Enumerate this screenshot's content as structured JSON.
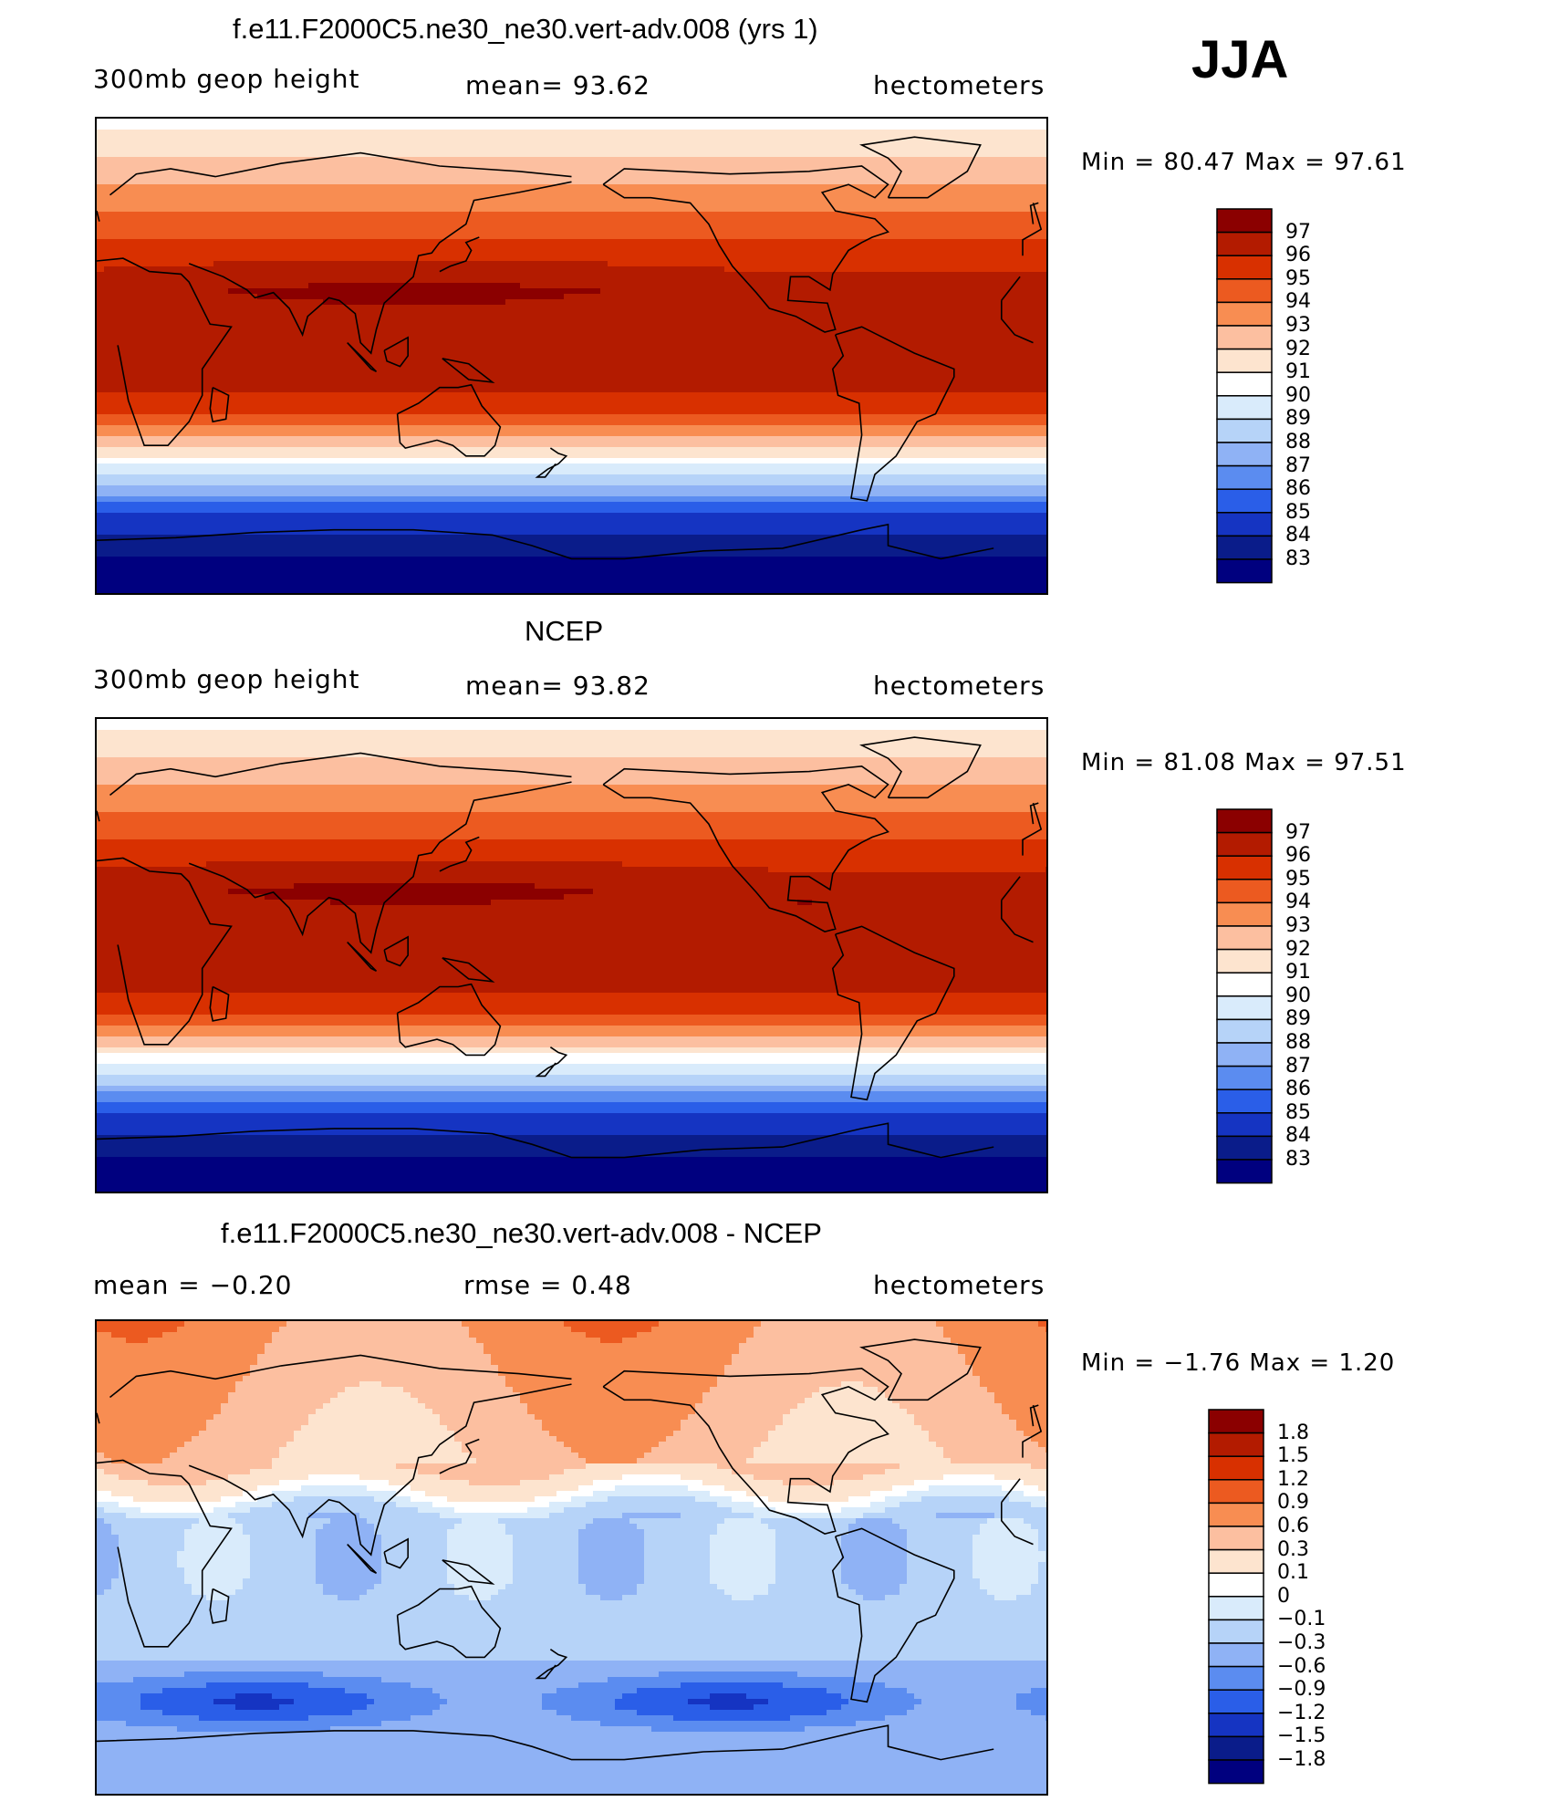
{
  "season": "JJA",
  "panels": [
    {
      "id": "model",
      "title": "f.e11.F2000C5.ne30_ne30.vert-adv.008 (yrs 1)",
      "left_label": "300mb geop height",
      "center_label": "mean=   93.62",
      "right_label": "hectometers",
      "minmax": "Min =   80.47 Max =   97.61",
      "colorbar": {
        "labels": [
          "97",
          "96",
          "95",
          "94",
          "93",
          "92",
          "91",
          "90",
          "89",
          "88",
          "87",
          "86",
          "85",
          "84",
          "83"
        ],
        "colors": [
          "#8b0000",
          "#b31b00",
          "#d83000",
          "#ec5a20",
          "#f88d52",
          "#fcbfa0",
          "#fde4cf",
          "#ffffff",
          "#d9ebfb",
          "#b6d3f8",
          "#8fb2f5",
          "#5b8cf0",
          "#2a5ee8",
          "#1534c2",
          "#0a1c8a",
          "#00007f"
        ]
      },
      "field": "geopotential"
    },
    {
      "id": "obs",
      "title": "NCEP",
      "left_label": "300mb geop height",
      "center_label": "mean=   93.82",
      "right_label": "hectometers",
      "minmax": "Min =   81.08 Max =   97.51",
      "colorbar": {
        "labels": [
          "97",
          "96",
          "95",
          "94",
          "93",
          "92",
          "91",
          "90",
          "89",
          "88",
          "87",
          "86",
          "85",
          "84",
          "83"
        ],
        "colors": [
          "#8b0000",
          "#b31b00",
          "#d83000",
          "#ec5a20",
          "#f88d52",
          "#fcbfa0",
          "#fde4cf",
          "#ffffff",
          "#d9ebfb",
          "#b6d3f8",
          "#8fb2f5",
          "#5b8cf0",
          "#2a5ee8",
          "#1534c2",
          "#0a1c8a",
          "#00007f"
        ]
      },
      "field": "geopotential"
    },
    {
      "id": "diff",
      "title": "f.e11.F2000C5.ne30_ne30.vert-adv.008 - NCEP",
      "left_label": "mean =   −0.20",
      "center_label": "rmse =    0.48",
      "right_label": "hectometers",
      "minmax": "Min =  −1.76 Max =    1.20",
      "colorbar": {
        "labels": [
          "1.8",
          "1.5",
          "1.2",
          "0.9",
          "0.6",
          "0.3",
          "0.1",
          "0",
          "−0.1",
          "−0.3",
          "−0.6",
          "−0.9",
          "−1.2",
          "−1.5",
          "−1.8"
        ],
        "colors": [
          "#8b0000",
          "#b31b00",
          "#d83000",
          "#ec5a20",
          "#f88d52",
          "#fcbfa0",
          "#fde4cf",
          "#ffffff",
          "#d9ebfb",
          "#b6d3f8",
          "#8fb2f5",
          "#5b8cf0",
          "#2a5ee8",
          "#1534c2",
          "#0a1c8a",
          "#00007f"
        ]
      },
      "field": "difference"
    }
  ]
}
